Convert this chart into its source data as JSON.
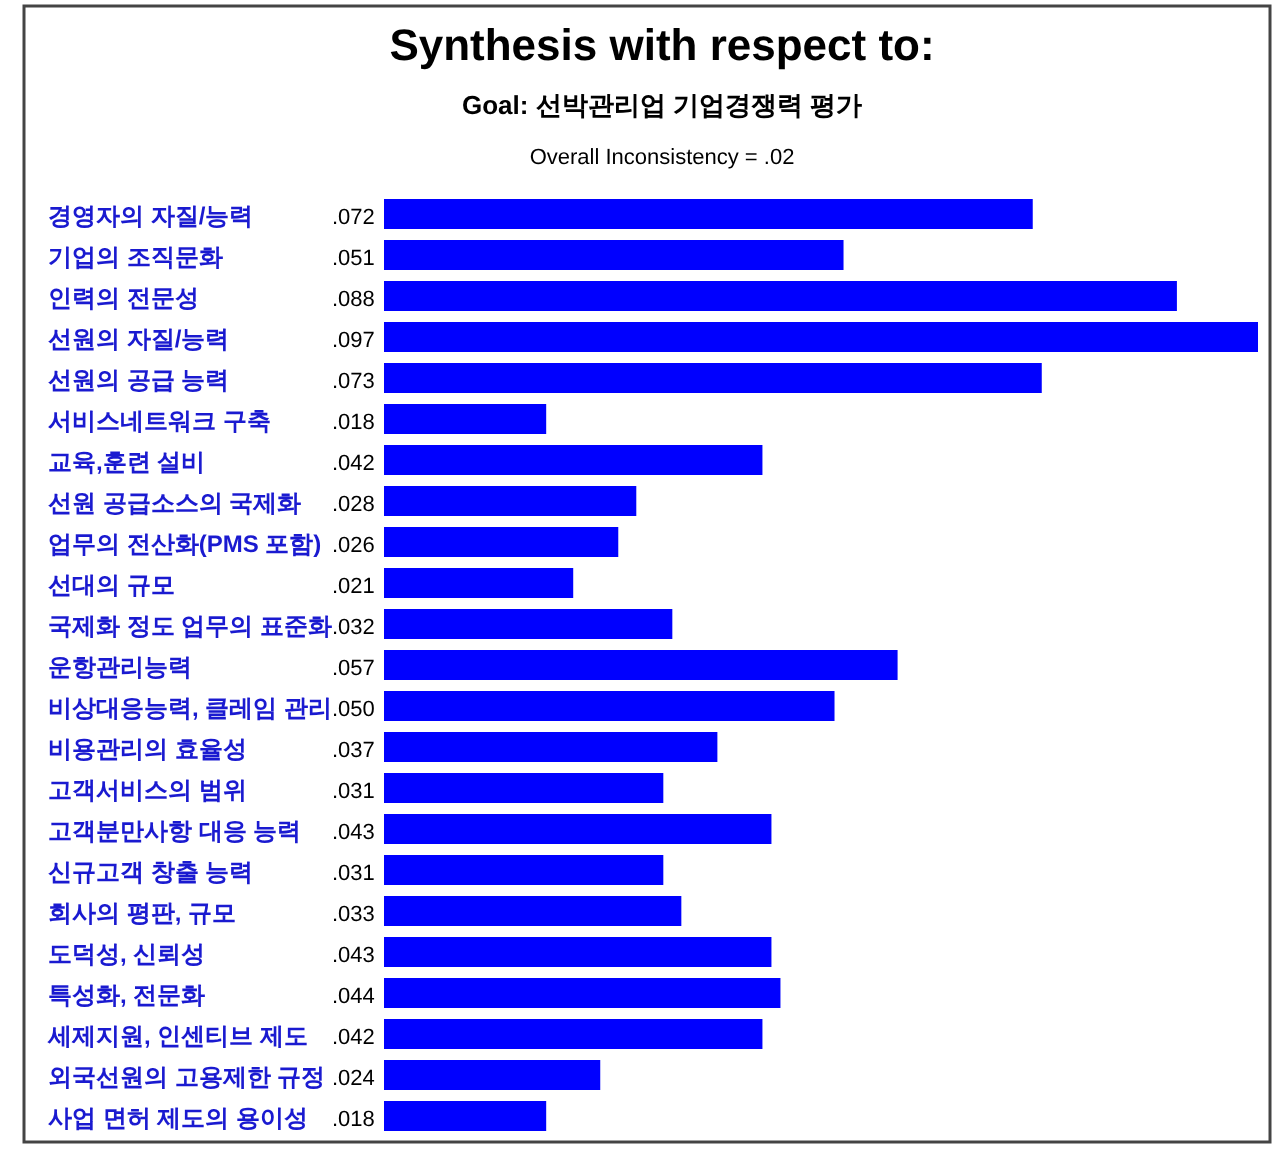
{
  "chart_data": {
    "type": "bar",
    "orientation": "horizontal",
    "title": "Synthesis with respect to:",
    "subtitle": "Goal: 선박관리업 기업경쟁력 평가",
    "annotations": [
      "Overall Inconsistency = .02"
    ],
    "categories": [
      "경영자의 자질/능력",
      "기업의 조직문화",
      "인력의 전문성",
      "선원의 자질/능력",
      "선원의 공급 능력",
      "서비스네트워크 구축",
      "교육,훈련 설비",
      "선원 공급소스의 국제화",
      "업무의 전산화(PMS 포함)",
      "선대의 규모",
      "국제화 정도 업무의 표준화",
      "운항관리능력",
      "비상대응능력, 클레임 관리",
      "비용관리의 효율성",
      "고객서비스의 범위",
      "고객분만사항 대응 능력",
      "신규고객 창출 능력",
      "회사의 평판, 규모",
      "도덕성, 신뢰성",
      "특성화, 전문화",
      "세제지원, 인센티브 제도",
      "외국선원의 고용제한 규정",
      "사업 면허 제도의 용이성"
    ],
    "values": [
      0.072,
      0.051,
      0.088,
      0.097,
      0.073,
      0.018,
      0.042,
      0.028,
      0.026,
      0.021,
      0.032,
      0.057,
      0.05,
      0.037,
      0.031,
      0.043,
      0.031,
      0.033,
      0.043,
      0.044,
      0.042,
      0.024,
      0.018
    ],
    "value_labels": [
      ".072",
      ".051",
      ".088",
      ".097",
      ".073",
      ".018",
      ".042",
      ".028",
      ".026",
      ".021",
      ".032",
      ".057",
      ".050",
      ".037",
      ".031",
      ".043",
      ".031",
      ".033",
      ".043",
      ".044",
      ".042",
      ".024",
      ".018"
    ],
    "color": "#0000ff"
  }
}
